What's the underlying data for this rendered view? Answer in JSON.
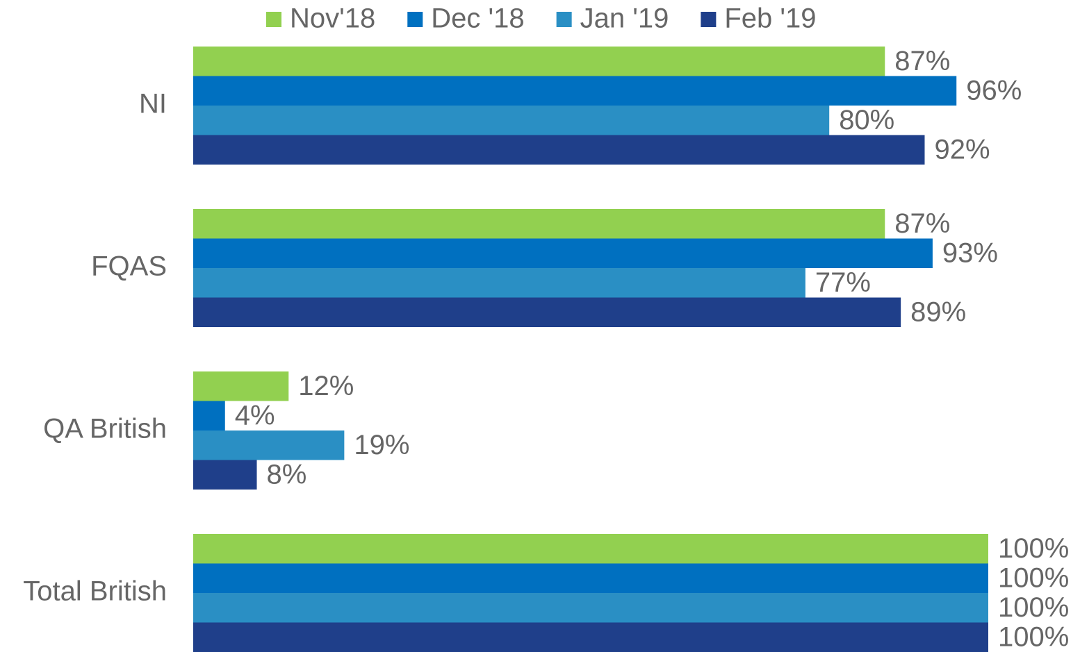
{
  "chart_data": {
    "type": "hbar",
    "categories": [
      "NI",
      "FQAS",
      "QA British",
      "Total British"
    ],
    "xlim": [
      0,
      100
    ],
    "legend": "top",
    "series": [
      {
        "name": "Nov'18",
        "color": "#92d050",
        "values": [
          87,
          87,
          12,
          100
        ],
        "value_labels": [
          "87%",
          "87%",
          "12%",
          "100%"
        ]
      },
      {
        "name": "Dec '18",
        "color": "#0070c0",
        "values": [
          96,
          93,
          4,
          100
        ],
        "value_labels": [
          "96%",
          "93%",
          "4%",
          "100%"
        ]
      },
      {
        "name": "Jan '19",
        "color": "#2a8fc4",
        "values": [
          80,
          77,
          19,
          100
        ],
        "value_labels": [
          "80%",
          "77%",
          "19%",
          "100%"
        ]
      },
      {
        "name": "Feb '19",
        "color": "#1f3f8a",
        "values": [
          92,
          89,
          8,
          100
        ],
        "value_labels": [
          "92%",
          "89%",
          "8%",
          "100%"
        ]
      }
    ]
  }
}
